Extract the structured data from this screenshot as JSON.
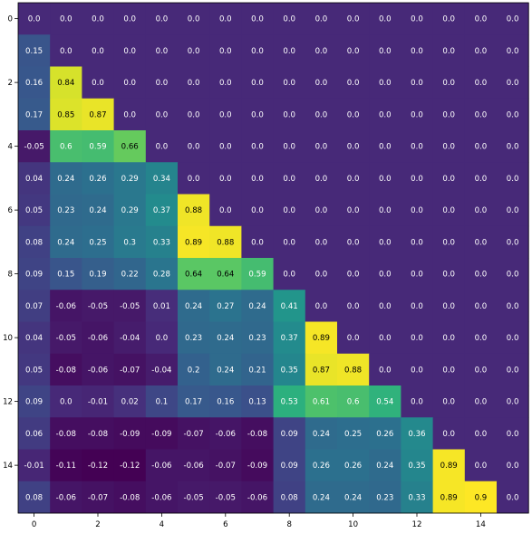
{
  "chart_data": {
    "type": "heatmap",
    "title": "",
    "xlabel": "",
    "ylabel": "",
    "x_ticks": [
      0,
      2,
      4,
      6,
      8,
      10,
      12,
      14
    ],
    "y_ticks": [
      0,
      2,
      4,
      6,
      8,
      10,
      12,
      14
    ],
    "x": [
      0,
      1,
      2,
      3,
      4,
      5,
      6,
      7,
      8,
      9,
      10,
      11,
      12,
      13,
      14,
      15
    ],
    "y": [
      0,
      1,
      2,
      3,
      4,
      5,
      6,
      7,
      8,
      9,
      10,
      11,
      12,
      13,
      14,
      15
    ],
    "colormap": "viridis",
    "vmin": -0.12,
    "vmax": 0.9,
    "values": [
      [
        0.0,
        0.0,
        0.0,
        0.0,
        0.0,
        0.0,
        0.0,
        0.0,
        0.0,
        0.0,
        0.0,
        0.0,
        0.0,
        0.0,
        0.0,
        0.0
      ],
      [
        0.15,
        0.0,
        0.0,
        0.0,
        0.0,
        0.0,
        0.0,
        0.0,
        0.0,
        0.0,
        0.0,
        0.0,
        0.0,
        0.0,
        0.0,
        0.0
      ],
      [
        0.16,
        0.84,
        0.0,
        0.0,
        0.0,
        0.0,
        0.0,
        0.0,
        0.0,
        0.0,
        0.0,
        0.0,
        0.0,
        0.0,
        0.0,
        0.0
      ],
      [
        0.17,
        0.85,
        0.87,
        0.0,
        0.0,
        0.0,
        0.0,
        0.0,
        0.0,
        0.0,
        0.0,
        0.0,
        0.0,
        0.0,
        0.0,
        0.0
      ],
      [
        -0.05,
        0.6,
        0.59,
        0.66,
        0.0,
        0.0,
        0.0,
        0.0,
        0.0,
        0.0,
        0.0,
        0.0,
        0.0,
        0.0,
        0.0,
        0.0
      ],
      [
        0.04,
        0.24,
        0.26,
        0.29,
        0.34,
        0.0,
        0.0,
        0.0,
        0.0,
        0.0,
        0.0,
        0.0,
        0.0,
        0.0,
        0.0,
        0.0
      ],
      [
        0.05,
        0.23,
        0.24,
        0.29,
        0.37,
        0.88,
        0.0,
        0.0,
        0.0,
        0.0,
        0.0,
        0.0,
        0.0,
        0.0,
        0.0,
        0.0
      ],
      [
        0.08,
        0.24,
        0.25,
        0.3,
        0.33,
        0.89,
        0.88,
        0.0,
        0.0,
        0.0,
        0.0,
        0.0,
        0.0,
        0.0,
        0.0,
        0.0
      ],
      [
        0.09,
        0.15,
        0.19,
        0.22,
        0.28,
        0.64,
        0.64,
        0.59,
        0.0,
        0.0,
        0.0,
        0.0,
        0.0,
        0.0,
        0.0,
        0.0
      ],
      [
        0.07,
        -0.06,
        -0.05,
        -0.05,
        0.01,
        0.24,
        0.27,
        0.24,
        0.41,
        0.0,
        0.0,
        0.0,
        0.0,
        0.0,
        0.0,
        0.0
      ],
      [
        0.04,
        -0.05,
        -0.06,
        -0.04,
        0.0,
        0.23,
        0.24,
        0.23,
        0.37,
        0.89,
        0.0,
        0.0,
        0.0,
        0.0,
        0.0,
        0.0
      ],
      [
        0.05,
        -0.08,
        -0.06,
        -0.07,
        -0.04,
        0.2,
        0.24,
        0.21,
        0.35,
        0.87,
        0.88,
        0.0,
        0.0,
        0.0,
        0.0,
        0.0
      ],
      [
        0.09,
        0.0,
        -0.01,
        0.02,
        0.1,
        0.17,
        0.16,
        0.13,
        0.53,
        0.61,
        0.6,
        0.54,
        0.0,
        0.0,
        0.0,
        0.0
      ],
      [
        0.06,
        -0.08,
        -0.08,
        -0.09,
        -0.09,
        -0.07,
        -0.06,
        -0.08,
        0.09,
        0.24,
        0.25,
        0.26,
        0.36,
        0.0,
        0.0,
        0.0
      ],
      [
        -0.01,
        -0.11,
        -0.12,
        -0.12,
        -0.06,
        -0.06,
        -0.07,
        -0.09,
        0.09,
        0.26,
        0.26,
        0.24,
        0.35,
        0.89,
        0.0,
        0.0
      ],
      [
        0.08,
        -0.06,
        -0.07,
        -0.08,
        -0.06,
        -0.05,
        -0.05,
        -0.06,
        0.08,
        0.24,
        0.24,
        0.23,
        0.33,
        0.89,
        0.9,
        0.0
      ]
    ]
  }
}
